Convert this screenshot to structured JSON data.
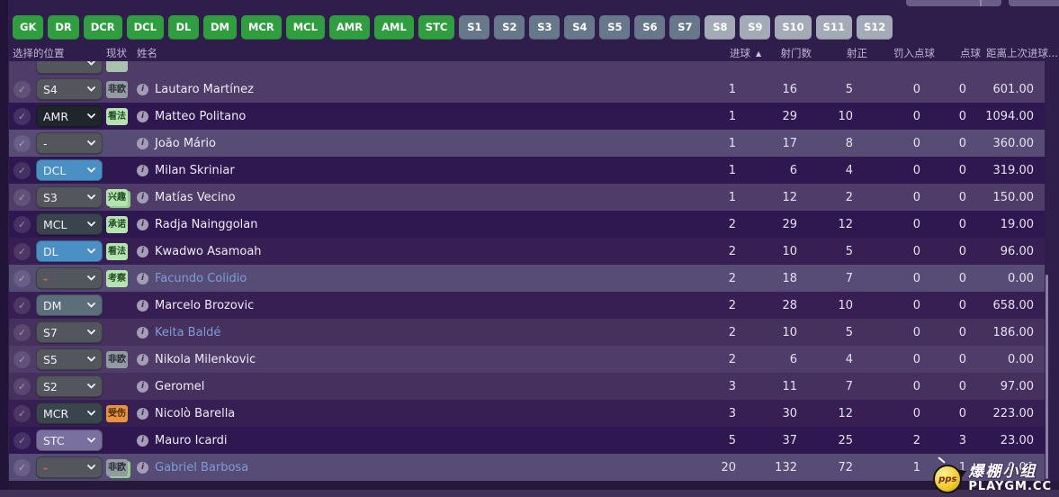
{
  "filter_bar": {
    "buttons": [
      {
        "label": "GK",
        "style": "green"
      },
      {
        "label": "DR",
        "style": "green"
      },
      {
        "label": "DCR",
        "style": "green"
      },
      {
        "label": "DCL",
        "style": "green"
      },
      {
        "label": "DL",
        "style": "green"
      },
      {
        "label": "DM",
        "style": "green"
      },
      {
        "label": "MCR",
        "style": "green"
      },
      {
        "label": "MCL",
        "style": "green"
      },
      {
        "label": "AMR",
        "style": "green"
      },
      {
        "label": "AML",
        "style": "green"
      },
      {
        "label": "STC",
        "style": "green"
      },
      {
        "label": "S1",
        "style": "dark"
      },
      {
        "label": "S2",
        "style": "dark"
      },
      {
        "label": "S3",
        "style": "dark"
      },
      {
        "label": "S4",
        "style": "dark"
      },
      {
        "label": "S5",
        "style": "dark"
      },
      {
        "label": "S6",
        "style": "dark"
      },
      {
        "label": "S7",
        "style": "dark"
      },
      {
        "label": "S8",
        "style": "light"
      },
      {
        "label": "S9",
        "style": "light"
      },
      {
        "label": "S10",
        "style": "light"
      },
      {
        "label": "S11",
        "style": "light"
      },
      {
        "label": "S12",
        "style": "light"
      }
    ]
  },
  "columns": {
    "position": "选择的位置",
    "status": "现状",
    "name": "姓名",
    "stats": [
      "进球",
      "射门数",
      "射正",
      "罚入点球",
      "点球",
      "距离上次进球..."
    ],
    "sort_icon": "▲",
    "sorted_column": "进球"
  },
  "partial_row": {
    "position": "",
    "dropdown_style": "gray",
    "badge": "",
    "badge_style": "palegreen",
    "shade": "m"
  },
  "rows": [
    {
      "position": "S4",
      "dropdown_style": "gray",
      "badge": "非欧",
      "badge_style": "gray",
      "badge_stacked": false,
      "name": "Lautaro Martínez",
      "link": false,
      "position_red": false,
      "shade": "m",
      "stats": [
        "1",
        "16",
        "5",
        "0",
        "0",
        "601.00"
      ]
    },
    {
      "position": "AMR",
      "dropdown_style": "darkest",
      "badge": "看法",
      "badge_style": "green",
      "badge_stacked": false,
      "name": "Matteo Politano",
      "link": false,
      "position_red": false,
      "shade": "vd",
      "stats": [
        "1",
        "29",
        "10",
        "0",
        "0",
        "1094.00"
      ]
    },
    {
      "position": "-",
      "dropdown_style": "gray",
      "badge": null,
      "badge_style": null,
      "badge_stacked": false,
      "name": "João Mário",
      "link": false,
      "position_red": false,
      "shade": "l",
      "stats": [
        "1",
        "17",
        "8",
        "0",
        "0",
        "360.00"
      ]
    },
    {
      "position": "DCL",
      "dropdown_style": "blue",
      "badge": null,
      "badge_style": null,
      "badge_stacked": false,
      "name": "Milan Skriniar",
      "link": false,
      "position_red": false,
      "shade": "vd",
      "stats": [
        "1",
        "6",
        "4",
        "0",
        "0",
        "319.00"
      ]
    },
    {
      "position": "S3",
      "dropdown_style": "gray",
      "badge": "兴趣",
      "badge_style": "green",
      "badge_stacked": true,
      "name": "Matías Vecino",
      "link": false,
      "position_red": false,
      "shade": "m",
      "stats": [
        "1",
        "12",
        "2",
        "0",
        "0",
        "150.00"
      ]
    },
    {
      "position": "MCL",
      "dropdown_style": "dark",
      "badge": "承诺",
      "badge_style": "green",
      "badge_stacked": false,
      "name": "Radja Nainggolan",
      "link": false,
      "position_red": false,
      "shade": "vd",
      "stats": [
        "2",
        "29",
        "12",
        "0",
        "0",
        "19.00"
      ]
    },
    {
      "position": "DL",
      "dropdown_style": "blue",
      "badge": "看法",
      "badge_style": "green",
      "badge_stacked": false,
      "name": "Kwadwo Asamoah",
      "link": false,
      "position_red": false,
      "shade": "d",
      "stats": [
        "2",
        "10",
        "5",
        "0",
        "0",
        "96.00"
      ]
    },
    {
      "position": "-",
      "dropdown_style": "gray",
      "badge": "考察",
      "badge_style": "green",
      "badge_stacked": false,
      "name": "Facundo Colidio",
      "link": true,
      "position_red": true,
      "shade": "l",
      "stats": [
        "2",
        "18",
        "7",
        "0",
        "0",
        "0.00"
      ]
    },
    {
      "position": "DM",
      "dropdown_style": "slate",
      "badge": null,
      "badge_style": null,
      "badge_stacked": false,
      "name": "Marcelo Brozovic",
      "link": false,
      "position_red": false,
      "shade": "d",
      "stats": [
        "2",
        "28",
        "10",
        "0",
        "0",
        "658.00"
      ]
    },
    {
      "position": "S7",
      "dropdown_style": "gray",
      "badge": null,
      "badge_style": null,
      "badge_stacked": false,
      "name": "Keita Baldé",
      "link": true,
      "position_red": false,
      "shade": "md",
      "stats": [
        "2",
        "10",
        "5",
        "0",
        "0",
        "186.00"
      ]
    },
    {
      "position": "S5",
      "dropdown_style": "gray",
      "badge": "非欧",
      "badge_style": "gray",
      "badge_stacked": false,
      "name": "Nikola Milenkovic",
      "link": false,
      "position_red": false,
      "shade": "m",
      "stats": [
        "2",
        "6",
        "4",
        "0",
        "0",
        "0.00"
      ]
    },
    {
      "position": "S2",
      "dropdown_style": "gray",
      "badge": null,
      "badge_style": null,
      "badge_stacked": false,
      "name": "Geromel",
      "link": false,
      "position_red": false,
      "shade": "md",
      "stats": [
        "3",
        "11",
        "7",
        "0",
        "0",
        "97.00"
      ]
    },
    {
      "position": "MCR",
      "dropdown_style": "dark",
      "badge": "受伤",
      "badge_style": "orange",
      "badge_stacked": false,
      "name": "Nicolò Barella",
      "link": false,
      "position_red": false,
      "shade": "d",
      "stats": [
        "3",
        "30",
        "12",
        "0",
        "0",
        "223.00"
      ]
    },
    {
      "position": "STC",
      "dropdown_style": "purple",
      "badge": null,
      "badge_style": null,
      "badge_stacked": false,
      "name": "Mauro Icardi",
      "link": false,
      "position_red": false,
      "shade": "vd",
      "stats": [
        "5",
        "37",
        "25",
        "2",
        "3",
        "23.00"
      ]
    },
    {
      "position": "-",
      "dropdown_style": "gray",
      "badge": "非欧",
      "badge_style": "gray",
      "badge_stacked": true,
      "name": "Gabriel Barbosa",
      "link": true,
      "position_red": true,
      "shade": "l",
      "stats": [
        "20",
        "132",
        "72",
        "1",
        "1",
        "0.00"
      ]
    }
  ],
  "watermark": {
    "ball_text": "pps",
    "line1": "爆棚小组",
    "line2": "PLAYGM.CC"
  },
  "colors": {
    "background": "#2F1D4B",
    "button_green": "#2F9E3F",
    "slot_dark": "#66788A",
    "slot_light": "#A3ACB6",
    "badge_green": "#B5E4B0",
    "badge_gray": "#939CA3",
    "badge_orange": "#E8943C",
    "dropdown_blue": "#4B90C4",
    "dropdown_purple": "#7A70A0",
    "link_blue": "#7E9CD6",
    "red_dash": "#E05A5A",
    "row_highlight": "#574C76"
  }
}
